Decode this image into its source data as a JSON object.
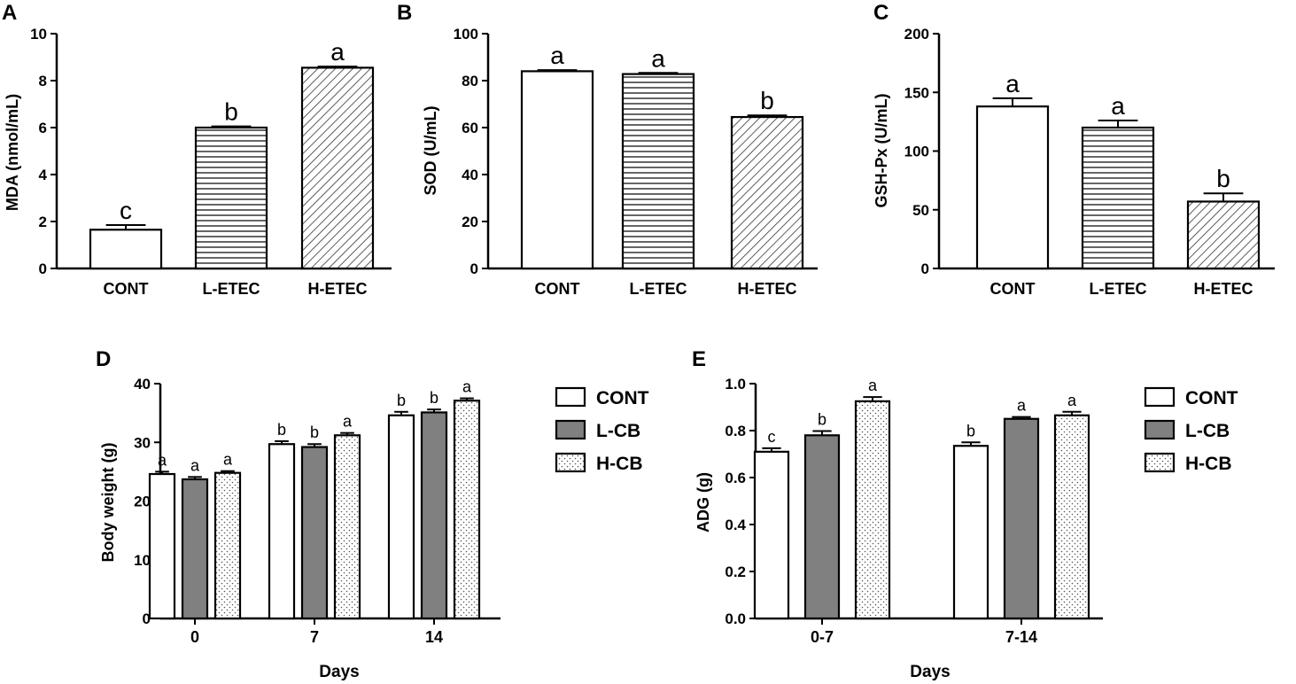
{
  "colors": {
    "dark_bar": "#808080",
    "stroke": "#000000",
    "background": "#ffffff"
  },
  "chart_data": [
    {
      "panel": "A",
      "type": "bar",
      "ylabel": "MDA (nmol/mL)",
      "xlabel": "",
      "ylim": [
        0,
        10
      ],
      "yticks": [
        "0",
        "2",
        "4",
        "6",
        "8",
        "10"
      ],
      "categories": [
        "CONT",
        "L-ETEC",
        "H-ETEC"
      ],
      "values": [
        1.65,
        6.0,
        8.55
      ],
      "errors": [
        0.2,
        0.05,
        0.05
      ],
      "letters": [
        "c",
        "b",
        "a"
      ],
      "patterns": [
        "plain",
        "hlines",
        "diag"
      ]
    },
    {
      "panel": "B",
      "type": "bar",
      "ylabel": "SOD (U/mL)",
      "xlabel": "",
      "ylim": [
        0,
        100
      ],
      "yticks": [
        "0",
        "20",
        "40",
        "60",
        "80",
        "100"
      ],
      "categories": [
        "CONT",
        "L-ETEC",
        "H-ETEC"
      ],
      "values": [
        84,
        82.8,
        64.5
      ],
      "errors": [
        0.5,
        0.5,
        0.7
      ],
      "letters": [
        "a",
        "a",
        "b"
      ],
      "patterns": [
        "plain",
        "hlines",
        "diag"
      ]
    },
    {
      "panel": "C",
      "type": "bar",
      "ylabel": "GSH-Px (U/mL)",
      "xlabel": "",
      "ylim": [
        0,
        200
      ],
      "yticks": [
        "0",
        "50",
        "100",
        "150",
        "200"
      ],
      "categories": [
        "CONT",
        "L-ETEC",
        "H-ETEC"
      ],
      "values": [
        138,
        120,
        57
      ],
      "errors": [
        7,
        6,
        7
      ],
      "letters": [
        "a",
        "a",
        "b"
      ],
      "patterns": [
        "plain",
        "hlines",
        "diag"
      ]
    },
    {
      "panel": "D",
      "type": "bar",
      "ylabel": "Body weight (g)",
      "xlabel": "Days",
      "ylim": [
        0,
        40
      ],
      "yticks": [
        "0",
        "10",
        "20",
        "30",
        "40"
      ],
      "categories": [
        "0",
        "7",
        "14"
      ],
      "series": [
        {
          "name": "CONT",
          "pattern": "plain",
          "values": [
            24.6,
            29.7,
            34.6
          ],
          "errors": [
            0.4,
            0.5,
            0.6
          ],
          "letters": [
            "a",
            "b",
            "b"
          ]
        },
        {
          "name": "L-CB",
          "pattern": "gray",
          "values": [
            23.7,
            29.2,
            35.1
          ],
          "errors": [
            0.4,
            0.5,
            0.5
          ],
          "letters": [
            "a",
            "b",
            "b"
          ]
        },
        {
          "name": "H-CB",
          "pattern": "dots",
          "values": [
            24.8,
            31.2,
            37.1
          ],
          "errors": [
            0.3,
            0.4,
            0.4
          ],
          "letters": [
            "a",
            "a",
            "a"
          ]
        }
      ],
      "legend": [
        "CONT",
        "L-CB",
        "H-CB"
      ]
    },
    {
      "panel": "E",
      "type": "bar",
      "ylabel": "ADG (g)",
      "xlabel": "Days",
      "ylim": [
        0,
        1.0
      ],
      "yticks": [
        "0.0",
        "0.2",
        "0.4",
        "0.6",
        "0.8",
        "1.0"
      ],
      "categories": [
        "0-7",
        "7-14"
      ],
      "series": [
        {
          "name": "CONT",
          "pattern": "plain",
          "values": [
            0.71,
            0.735
          ],
          "errors": [
            0.015,
            0.015
          ],
          "letters": [
            "c",
            "b"
          ]
        },
        {
          "name": "L-CB",
          "pattern": "gray",
          "values": [
            0.78,
            0.85
          ],
          "errors": [
            0.018,
            0.008
          ],
          "letters": [
            "b",
            "a"
          ]
        },
        {
          "name": "H-CB",
          "pattern": "dots",
          "values": [
            0.925,
            0.865
          ],
          "errors": [
            0.018,
            0.015
          ],
          "letters": [
            "a",
            "a"
          ]
        }
      ],
      "legend": [
        "CONT",
        "L-CB",
        "H-CB"
      ]
    }
  ]
}
